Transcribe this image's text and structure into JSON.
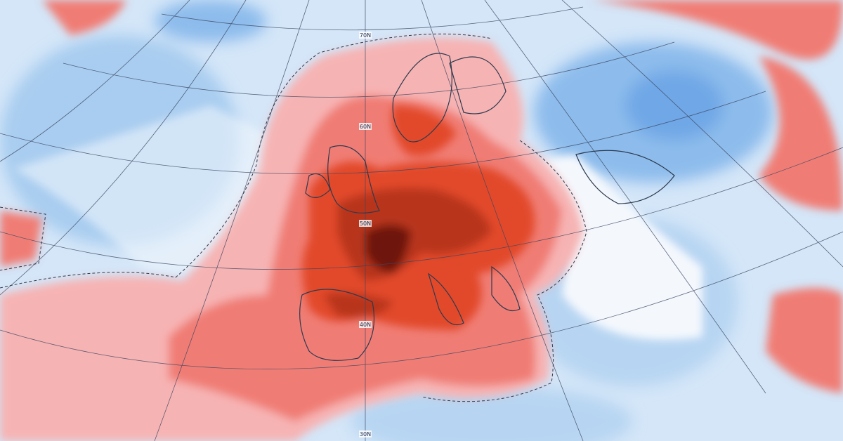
{
  "map": {
    "latitude_labels": [
      "70N",
      "60N",
      "50N",
      "40N",
      "30N"
    ]
  }
}
